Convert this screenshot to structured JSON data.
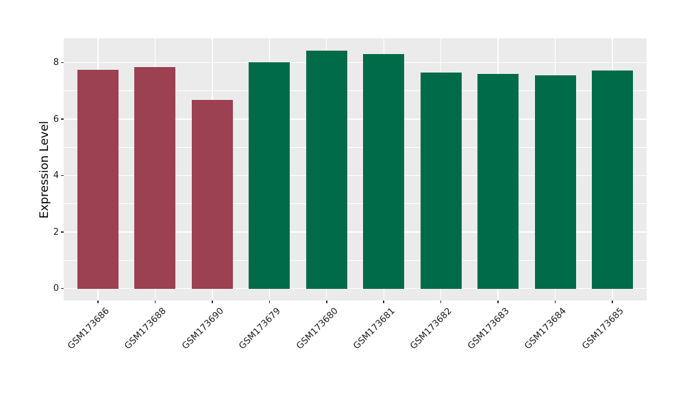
{
  "figure": {
    "background": "#FFFFFF"
  },
  "chart_data": {
    "type": "bar",
    "title": "",
    "xlabel": "",
    "ylabel": "Expression Level",
    "categories": [
      "GSM173686",
      "GSM173688",
      "GSM173690",
      "GSM173679",
      "GSM173680",
      "GSM173681",
      "GSM173682",
      "GSM173683",
      "GSM173684",
      "GSM173685"
    ],
    "values": [
      7.75,
      7.84,
      6.67,
      8.01,
      8.43,
      8.3,
      7.65,
      7.59,
      7.55,
      7.72
    ],
    "bar_colors": [
      "#9B4151",
      "#9B4151",
      "#9B4151",
      "#006B49",
      "#006B49",
      "#006B49",
      "#006B49",
      "#006B49",
      "#006B49",
      "#006B49"
    ],
    "yticks": [
      0,
      2,
      4,
      6,
      8
    ],
    "ytick_labels": [
      "0",
      "2",
      "4",
      "6",
      "8"
    ],
    "minor_yticks": [
      1,
      3,
      5,
      7
    ],
    "ylim": [
      -0.42,
      8.86
    ],
    "grid": true,
    "legend": false,
    "xtick_rotation_deg": 45,
    "panel_bg": "#EBEBEB",
    "grid_color": "#FFFFFF",
    "tick_color": "#333333",
    "text_color": "#1A1A1A"
  }
}
